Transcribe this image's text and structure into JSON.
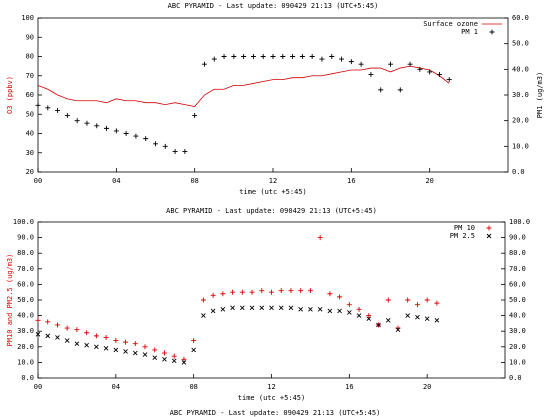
{
  "chart_data": [
    {
      "type": "line",
      "title": "ABC PYRAMID - Last update: 090429 21:13 (UTC+5:45)",
      "x_label": "time (utc +5:45)",
      "y_label": "O3 (ppbv)",
      "y2_label": "PM1 (ug/m3)",
      "xlim": [
        0,
        24
      ],
      "xticks": [
        {
          "value": 0,
          "label": "00"
        },
        {
          "value": 4,
          "label": "04"
        },
        {
          "value": 8,
          "label": "08"
        },
        12,
        16,
        20
      ],
      "ylim": [
        20,
        100
      ],
      "yticks": [
        20,
        30,
        40,
        50,
        60,
        70,
        80,
        90,
        100
      ],
      "y2lim": [
        0,
        60
      ],
      "y2ticks": [
        {
          "value": 0,
          "label": "0.0"
        },
        {
          "value": 10,
          "label": "10.0"
        },
        {
          "value": 20,
          "label": "20.0"
        },
        {
          "value": 30,
          "label": "30.0"
        },
        {
          "value": 40,
          "label": "40.0"
        },
        {
          "value": 50,
          "label": "50.0"
        },
        {
          "value": 60,
          "label": "60.0"
        }
      ],
      "legend": "top-right",
      "x": [
        0,
        0.5,
        1,
        1.5,
        2,
        2.5,
        3,
        3.5,
        4,
        4.5,
        5,
        5.5,
        6,
        6.5,
        7,
        7.5,
        8,
        8.5,
        9,
        9.5,
        10,
        10.5,
        11,
        11.5,
        12,
        12.5,
        13,
        13.5,
        14,
        14.5,
        15,
        15.5,
        16,
        16.5,
        17,
        17.5,
        18,
        18.5,
        19,
        19.5,
        20,
        20.5,
        21
      ],
      "series": [
        {
          "name": "Surface ozone",
          "color": "#d00000",
          "marker": "line",
          "values": [
            65,
            63,
            60,
            58,
            57,
            57,
            57,
            56,
            58,
            57,
            57,
            56,
            56,
            55,
            56,
            55,
            54,
            60,
            63,
            63,
            65,
            65,
            66,
            67,
            68,
            68,
            69,
            69,
            70,
            70,
            71,
            72,
            73,
            73,
            74,
            74,
            72,
            74,
            75,
            74,
            73,
            70,
            66
          ]
        },
        {
          "name": "PM 1",
          "color": "#000000",
          "marker": "plus",
          "axis": "y2",
          "values": [
            26,
            25,
            24,
            22,
            20,
            19,
            18,
            17,
            16,
            15,
            14,
            13,
            11,
            10,
            8,
            8,
            22,
            42,
            44,
            45,
            45,
            45,
            45,
            45,
            45,
            45,
            45,
            45,
            45,
            44,
            45,
            44,
            43,
            42,
            38,
            32,
            42,
            32,
            42,
            40,
            39,
            38,
            36
          ]
        }
      ]
    },
    {
      "type": "scatter",
      "title": "ABC PYRAMID - Last update: 090429 21:13 (UTC+5:45)",
      "x_label": "time (utc +5:45)",
      "y_label": "PM10 and PM2.5 (ug/m3)",
      "xlim": [
        0,
        24
      ],
      "xticks": [
        {
          "value": 0,
          "label": "00"
        },
        {
          "value": 4,
          "label": "04"
        },
        {
          "value": 8,
          "label": "08"
        },
        12,
        16,
        20
      ],
      "ylim": [
        0,
        100
      ],
      "yticks": [
        {
          "value": 0,
          "label": "0.0"
        },
        {
          "value": 10,
          "label": "10.0"
        },
        {
          "value": 20,
          "label": "20.0"
        },
        {
          "value": 30,
          "label": "30.0"
        },
        {
          "value": 40,
          "label": "40.0"
        },
        {
          "value": 50,
          "label": "50.0"
        },
        {
          "value": 60,
          "label": "60.0"
        },
        {
          "value": 70,
          "label": "70.0"
        },
        {
          "value": 80,
          "label": "80.0"
        },
        {
          "value": 90,
          "label": "90.0"
        },
        {
          "value": 100,
          "label": "100.0"
        }
      ],
      "y2lim": [
        0,
        100
      ],
      "y2ticks": [
        {
          "value": 0,
          "label": "0.0"
        },
        {
          "value": 10,
          "label": "10.0"
        },
        {
          "value": 20,
          "label": "20.0"
        },
        {
          "value": 30,
          "label": "30.0"
        },
        {
          "value": 40,
          "label": "40.0"
        },
        {
          "value": 50,
          "label": "50.0"
        },
        {
          "value": 60,
          "label": "60.0"
        },
        {
          "value": 70,
          "label": "70.0"
        },
        {
          "value": 80,
          "label": "80.0"
        },
        {
          "value": 90,
          "label": "90.0"
        },
        {
          "value": 100,
          "label": "100.0"
        }
      ],
      "legend": "top-right",
      "x": [
        0,
        0.5,
        1,
        1.5,
        2,
        2.5,
        3,
        3.5,
        4,
        4.5,
        5,
        5.5,
        6,
        6.5,
        7,
        7.5,
        8,
        8.5,
        9,
        9.5,
        10,
        10.5,
        11,
        11.5,
        12,
        12.5,
        13,
        13.5,
        14,
        14.5,
        15,
        15.5,
        16,
        16.5,
        17,
        17.5,
        18,
        18.5,
        19,
        19.5,
        20,
        20.5
      ],
      "series": [
        {
          "name": "PM 10",
          "color": "#e00000",
          "marker": "plus",
          "values": [
            37,
            36,
            34,
            32,
            31,
            29,
            27,
            26,
            24,
            23,
            22,
            20,
            18,
            16,
            14,
            12,
            24,
            50,
            53,
            54,
            55,
            55,
            55,
            56,
            55,
            56,
            56,
            56,
            56,
            90,
            54,
            52,
            47,
            44,
            40,
            34,
            50,
            32,
            50,
            47,
            50,
            48
          ]
        },
        {
          "name": "PM 2.5",
          "color": "#000000",
          "marker": "cross",
          "values": [
            28,
            27,
            26,
            24,
            22,
            21,
            20,
            19,
            18,
            17,
            16,
            15,
            13,
            12,
            11,
            10,
            18,
            40,
            43,
            44,
            45,
            45,
            45,
            45,
            45,
            45,
            45,
            44,
            44,
            44,
            43,
            43,
            42,
            40,
            38,
            34,
            37,
            31,
            40,
            39,
            38,
            37
          ]
        }
      ]
    }
  ],
  "next_chart_title": "ABC PYRAMID - Last update: 090429 21:13 (UTC+5:45)"
}
